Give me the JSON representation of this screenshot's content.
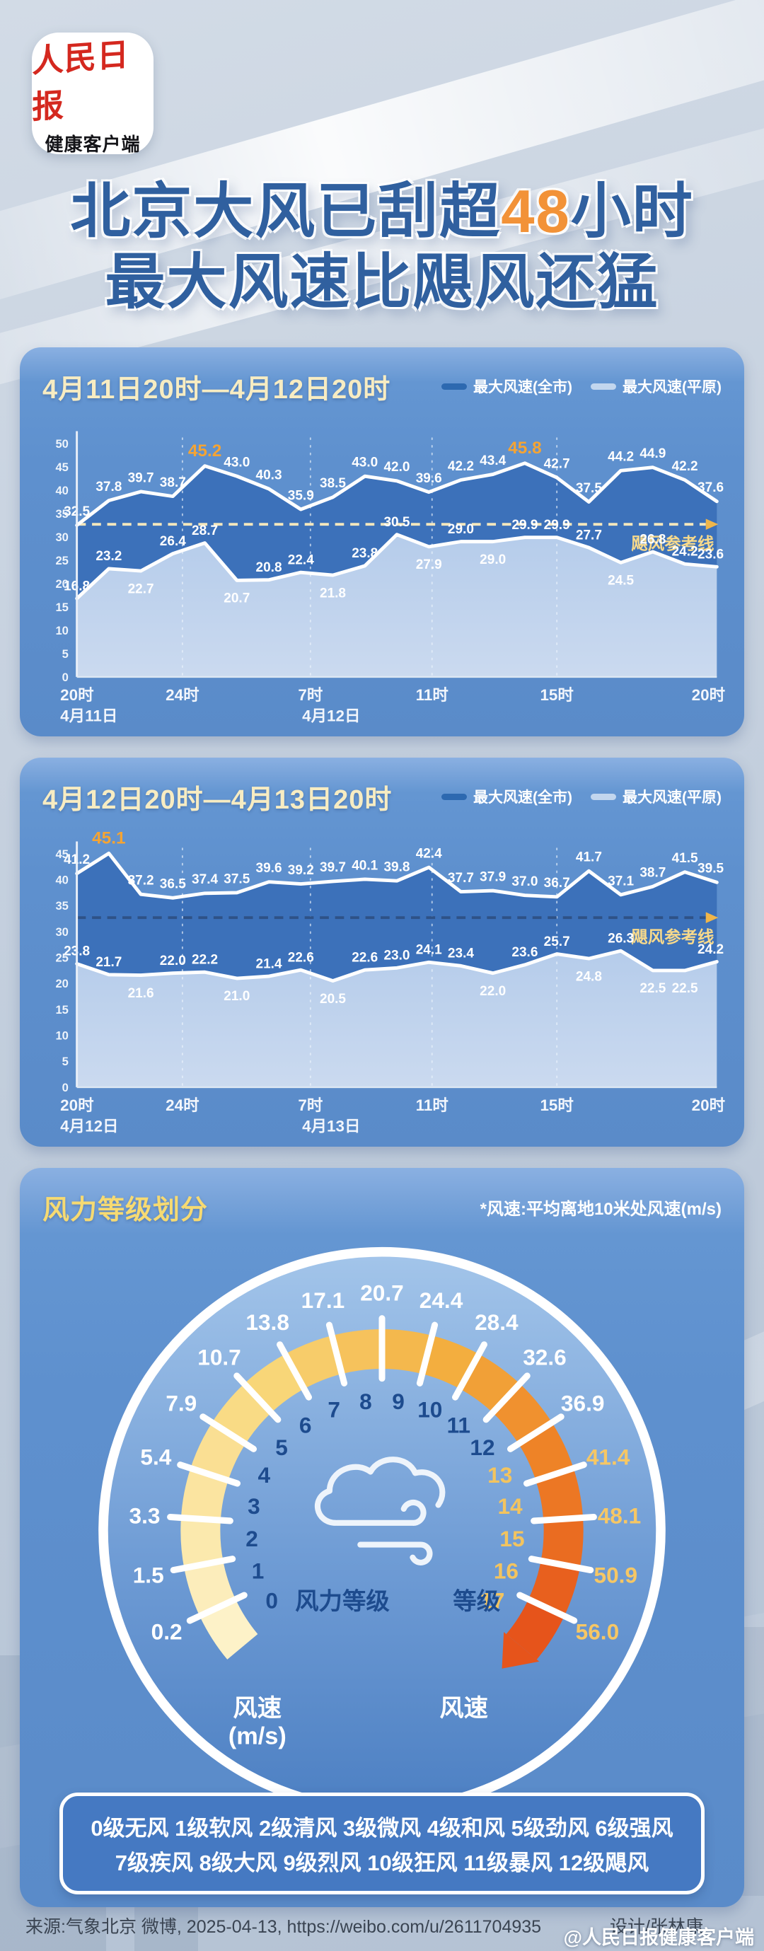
{
  "logo": {
    "line1": "人民日报",
    "line2": "健康客户端"
  },
  "title": {
    "part1": "北京大风已刮超",
    "highlight": "48",
    "part2": "小时",
    "line2": "最大风速比飓风还猛"
  },
  "colors": {
    "accent_orange": "#f29238",
    "title_blue": "#30609f",
    "panel_blue": "#5e90ce",
    "series1_fill": "#3a70b8",
    "series2_fill_top": "#b9cfec",
    "series2_fill_bottom": "#cfddf1",
    "line_white": "#ffffff",
    "highlight_label": "#f5a433",
    "ref_label": "#f7d98b",
    "ref_arrow": "#f0b64a",
    "gauge_navy": "#1d4b8e",
    "gauge_gold": "#f3c45f",
    "gauge_band_stops": [
      "#fdf2c8",
      "#f8d678",
      "#f3ae3f",
      "#ee8327",
      "#e6541b"
    ]
  },
  "chart_data": [
    {
      "type": "line",
      "title": "4月11日20时—4月12日20时",
      "ylim": [
        0,
        50
      ],
      "y_step": 5,
      "grid": "vertical-dashed",
      "legend_position": "top-right",
      "x_ticks": [
        {
          "label": "20时",
          "pos": 0
        },
        {
          "label": "24时",
          "pos": 0.165
        },
        {
          "label": "7时",
          "pos": 0.365
        },
        {
          "label": "11时",
          "pos": 0.555
        },
        {
          "label": "15时",
          "pos": 0.75
        },
        {
          "label": "20时",
          "pos": 1
        }
      ],
      "x_dates": [
        {
          "label": "4月11日",
          "pos": 0
        },
        {
          "label": "4月12日",
          "pos": 0.365
        }
      ],
      "ref": {
        "value": 32.7,
        "label": "飓风参考线",
        "dash_color": "#f4e7bd"
      },
      "series": [
        {
          "name": "最大风速(全市)",
          "values": [
            32.5,
            37.8,
            39.7,
            38.7,
            45.2,
            43.0,
            40.3,
            35.9,
            38.5,
            43.0,
            42.0,
            39.6,
            42.2,
            43.4,
            45.8,
            42.7,
            37.5,
            44.2,
            44.9,
            42.2,
            37.6
          ],
          "highlights": [
            4,
            14
          ]
        },
        {
          "name": "最大风速(平原)",
          "values": [
            16.8,
            23.2,
            22.7,
            26.4,
            28.7,
            20.7,
            20.8,
            22.4,
            21.8,
            23.8,
            30.5,
            27.9,
            29.0,
            29.0,
            29.9,
            29.9,
            27.7,
            24.5,
            26.8,
            24.2,
            23.6
          ],
          "highlights": []
        }
      ]
    },
    {
      "type": "line",
      "title": "4月12日20时—4月13日20时",
      "ylim": [
        0,
        45
      ],
      "y_step": 5,
      "grid": "vertical-dashed",
      "legend_position": "top-right",
      "x_ticks": [
        {
          "label": "20时",
          "pos": 0
        },
        {
          "label": "24时",
          "pos": 0.165
        },
        {
          "label": "7时",
          "pos": 0.365
        },
        {
          "label": "11时",
          "pos": 0.555
        },
        {
          "label": "15时",
          "pos": 0.75
        },
        {
          "label": "20时",
          "pos": 1
        }
      ],
      "x_dates": [
        {
          "label": "4月12日",
          "pos": 0
        },
        {
          "label": "4月13日",
          "pos": 0.365
        }
      ],
      "ref": {
        "value": 32.7,
        "label": "飓风参考线",
        "dash_color": "#2e5287"
      },
      "series": [
        {
          "name": "最大风速(全市)",
          "values": [
            41.2,
            45.1,
            37.2,
            36.5,
            37.4,
            37.5,
            39.6,
            39.2,
            39.7,
            40.1,
            39.8,
            42.4,
            37.7,
            37.9,
            37.0,
            36.7,
            41.7,
            37.1,
            38.7,
            41.5,
            39.5
          ],
          "highlights": [
            1
          ]
        },
        {
          "name": "最大风速(平原)",
          "values": [
            23.8,
            21.7,
            21.6,
            22.0,
            22.2,
            21.0,
            21.4,
            22.6,
            20.5,
            22.6,
            23.0,
            24.1,
            23.4,
            22.0,
            23.6,
            25.7,
            24.8,
            26.3,
            22.5,
            22.5,
            24.2
          ],
          "highlights": []
        }
      ]
    },
    {
      "type": "gauge",
      "title": "风力等级划分",
      "note": "*风速:平均离地10米处风速(m/s)",
      "levels": [
        0,
        1,
        2,
        3,
        4,
        5,
        6,
        7,
        8,
        9,
        10,
        11,
        12,
        13,
        14,
        15,
        16,
        17
      ],
      "boundary_speeds": [
        0.2,
        1.5,
        3.3,
        5.4,
        7.9,
        10.7,
        13.8,
        17.1,
        20.7,
        24.4,
        28.4,
        32.6,
        36.9,
        41.4,
        48.1,
        50.9,
        56.0
      ],
      "inner_caption_left": "风力等级",
      "inner_caption_right": "等级",
      "outer_caption_left_1": "风速",
      "outer_caption_left_2": "(m/s)",
      "outer_caption_right": "风速",
      "level_names": [
        "0级无风",
        "1级软风",
        "2级清风",
        "3级微风",
        "4级和风",
        "5级劲风",
        "6级强风",
        "7级疾风",
        "8级大风",
        "9级烈风",
        "10级狂风",
        "11级暴风",
        "12级飓风"
      ]
    }
  ],
  "footer": {
    "source": "来源:气象北京 微博, 2025-04-13, https://weibo.com/u/2611704935",
    "designer": "设计/张林康",
    "watermark": "@人民日报健康客户端"
  }
}
